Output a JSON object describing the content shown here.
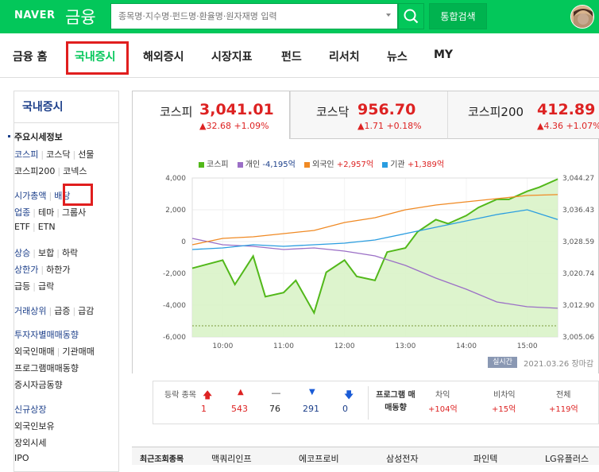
{
  "header": {
    "logo": "NAVER",
    "section": "금융",
    "search_placeholder": "종목명·지수명·펀드명·환율명·원자재명 입력",
    "search_button": "통합검색"
  },
  "nav": {
    "items": [
      "금융 홈",
      "국내증시",
      "해외증시",
      "시장지표",
      "펀드",
      "리서치",
      "뉴스",
      "MY"
    ],
    "active": "국내증시"
  },
  "sidebar": {
    "title": "국내증시",
    "section_header": "주요시세정보",
    "rows": [
      [
        "코스피",
        "코스닥",
        "선물"
      ],
      [
        "코스피200",
        "코넥스"
      ],
      [
        "시가총액",
        "배당"
      ],
      [
        "업종",
        "테마",
        "그룹사"
      ],
      [
        "ETF",
        "ETN"
      ],
      [
        "상승",
        "보합",
        "하락"
      ],
      [
        "상한가",
        "하한가"
      ],
      [
        "급등",
        "급락"
      ],
      [
        "거래상위",
        "급증",
        "급감"
      ],
      [
        "투자자별매매동향"
      ],
      [
        "외국인매매",
        "기관매매"
      ],
      [
        "프로그램매매동향"
      ],
      [
        "증시자금동향"
      ],
      [
        "신규상장"
      ],
      [
        "외국인보유"
      ],
      [
        "장외시세"
      ],
      [
        "IPO"
      ]
    ]
  },
  "indices": [
    {
      "name": "코스피",
      "value": "3,041.01",
      "change": "32.68",
      "pct": "+1.09%"
    },
    {
      "name": "코스닥",
      "value": "956.70",
      "change": "1.71",
      "pct": "+0.18%"
    },
    {
      "name": "코스피200",
      "value": "412.89",
      "change": "4.36",
      "pct": "+1.07%"
    }
  ],
  "legend": [
    {
      "label": "코스피",
      "color": "#52b81a"
    },
    {
      "label": "개인",
      "value": "-4,195억",
      "color": "#9b6fc6"
    },
    {
      "label": "외국인",
      "value": "+2,957억",
      "color": "#f08a24"
    },
    {
      "label": "기관",
      "value": "+1,389억",
      "color": "#2a9de0"
    }
  ],
  "chart_data": {
    "type": "line",
    "title": "",
    "x_ticks": [
      "10:00",
      "11:00",
      "12:00",
      "13:00",
      "14:00",
      "15:00"
    ],
    "y_left_ticks": [
      "4,000",
      "2,000",
      "0",
      "-2,000",
      "-4,000",
      "-6,000"
    ],
    "y_left_range": [
      -6000,
      4000
    ],
    "y_right_ticks": [
      "3,044.27",
      "3,036.43",
      "3,028.59",
      "3,020.74",
      "3,012.90",
      "3,005.06"
    ],
    "y_right_range": [
      3005.06,
      3044.27
    ],
    "series": [
      {
        "name": "코스피",
        "axis": "right",
        "x": [
          0,
          0.5,
          0.7,
          1,
          1.2,
          1.5,
          1.7,
          2,
          2.2,
          2.5,
          2.7,
          3,
          3.2,
          3.5,
          3.7,
          4,
          4.2,
          4.5,
          4.7,
          5,
          5.2,
          5.5,
          5.7,
          6
        ],
        "y": [
          3022,
          3024,
          3018,
          3025,
          3015,
          3016,
          3019,
          3011,
          3021,
          3024,
          3020,
          3019,
          3026,
          3027,
          3031,
          3034,
          3033,
          3035,
          3037,
          3039,
          3039,
          3041,
          3042,
          3044
        ]
      },
      {
        "name": "개인",
        "axis": "left",
        "x": [
          0,
          0.5,
          1,
          1.5,
          2,
          2.5,
          3,
          3.5,
          4,
          4.5,
          5,
          5.5,
          6
        ],
        "y": [
          200,
          -200,
          -300,
          -500,
          -400,
          -600,
          -900,
          -1500,
          -2300,
          -3000,
          -3800,
          -4100,
          -4195
        ]
      },
      {
        "name": "외국인",
        "axis": "left",
        "x": [
          0,
          0.5,
          1,
          1.5,
          2,
          2.5,
          3,
          3.5,
          4,
          4.5,
          5,
          5.5,
          6
        ],
        "y": [
          -200,
          200,
          300,
          500,
          700,
          1200,
          1500,
          2000,
          2300,
          2500,
          2700,
          2900,
          2957
        ]
      },
      {
        "name": "기관",
        "axis": "left",
        "x": [
          0,
          0.5,
          1,
          1.5,
          2,
          2.5,
          3,
          3.5,
          4,
          4.5,
          5,
          5.5,
          6
        ],
        "y": [
          -500,
          -400,
          -200,
          -300,
          -200,
          -100,
          100,
          500,
          900,
          1300,
          1700,
          2000,
          1389
        ]
      }
    ]
  },
  "chart_footer": {
    "badge": "실시간",
    "date": "2021.03.26",
    "status": "장마감"
  },
  "market_counts": {
    "label": "등락 종목",
    "values": [
      "1",
      "543",
      "76",
      "291",
      "0"
    ]
  },
  "program": {
    "label": "프로그램 매매동향",
    "headers": [
      "차익",
      "비차익",
      "전체"
    ],
    "values": [
      "+104억",
      "+15억",
      "+119억"
    ]
  },
  "ticker": {
    "label": "최근조회종목",
    "items": [
      "맥쿼리인프",
      "에코프로비",
      "삼성전자",
      "파인텍",
      "LG유플러스"
    ]
  }
}
